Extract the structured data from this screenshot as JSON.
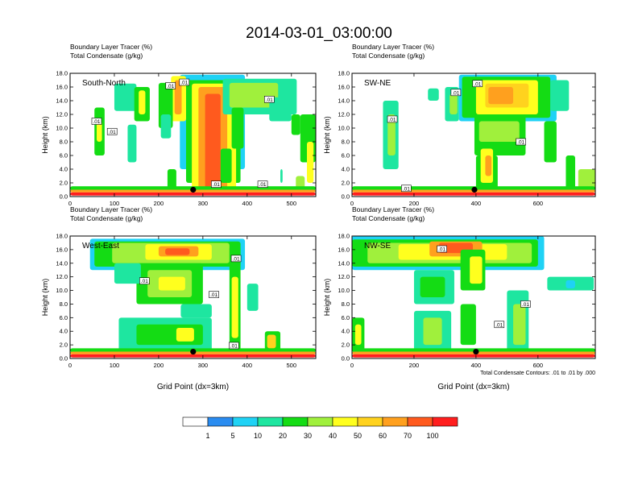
{
  "title": "2014-03-01_03:00:00",
  "chart_data": [
    {
      "type": "heatmap",
      "panel_label": "South-North",
      "subtitle_lines": [
        "Boundary Layer Tracer    (%)",
        "Total Condensate    (g/kg)"
      ],
      "xlabel": "",
      "ylabel": "Height (km)",
      "xlim": [
        0,
        555
      ],
      "ylim": [
        0,
        18
      ],
      "x_ticks": [
        0,
        100,
        200,
        300,
        400,
        500
      ],
      "y_ticks": [
        "0.0",
        "2.0",
        "4.0",
        "6.0",
        "8.0",
        "10.0",
        "12.0",
        "14.0",
        "16.0",
        "18.0"
      ],
      "marker": {
        "x": 278,
        "y": 1.0
      },
      "contour_labels": [
        {
          "text": ".01",
          "x": 227,
          "y": 16.2
        },
        {
          "text": ".01",
          "x": 258,
          "y": 16.7
        },
        {
          "text": ".01",
          "x": 450,
          "y": 14.2
        },
        {
          "text": ".01",
          "x": 60,
          "y": 11.0
        },
        {
          "text": ".01",
          "x": 95,
          "y": 9.5
        },
        {
          "text": ".01",
          "x": 330,
          "y": 1.8
        },
        {
          "text": ".01",
          "x": 435,
          "y": 1.8
        }
      ]
    },
    {
      "type": "heatmap",
      "panel_label": "SW-NE",
      "subtitle_lines": [
        "Boundary Layer Tracer    (%)",
        "Total Condensate    (g/kg)"
      ],
      "xlabel": "",
      "ylabel": "Height (km)",
      "xlim": [
        0,
        785
      ],
      "ylim": [
        0,
        18
      ],
      "x_ticks": [
        0,
        200,
        400,
        600
      ],
      "y_ticks": [
        "0.0",
        "2.0",
        "4.0",
        "6.0",
        "8.0",
        "10.0",
        "12.0",
        "14.0",
        "16.0",
        "18.0"
      ],
      "marker": {
        "x": 395,
        "y": 1.0
      },
      "contour_labels": [
        {
          "text": ".01",
          "x": 405,
          "y": 16.5
        },
        {
          "text": ".01",
          "x": 335,
          "y": 15.2
        },
        {
          "text": ".01",
          "x": 130,
          "y": 11.3
        },
        {
          "text": ".01",
          "x": 545,
          "y": 8.0
        },
        {
          "text": ".01",
          "x": 175,
          "y": 1.2
        }
      ]
    },
    {
      "type": "heatmap",
      "panel_label": "West-East",
      "subtitle_lines": [
        "Boundary Layer Tracer    (%)",
        "Total Condensate    (g/kg)"
      ],
      "xlabel": "Grid Point (dx=3km)",
      "ylabel": "Height (km)",
      "xlim": [
        0,
        555
      ],
      "ylim": [
        0,
        18
      ],
      "x_ticks": [
        0,
        100,
        200,
        300,
        400,
        500
      ],
      "y_ticks": [
        "0.0",
        "2.0",
        "4.0",
        "6.0",
        "8.0",
        "10.0",
        "12.0",
        "14.0",
        "16.0",
        "18.0"
      ],
      "marker": {
        "x": 278,
        "y": 1.0
      },
      "contour_labels": [
        {
          "text": ".01",
          "x": 375,
          "y": 14.7
        },
        {
          "text": ".01",
          "x": 168,
          "y": 11.4
        },
        {
          "text": ".01",
          "x": 325,
          "y": 9.4
        },
        {
          "text": ".01",
          "x": 370,
          "y": 1.9
        }
      ]
    },
    {
      "type": "heatmap",
      "panel_label": "NW-SE",
      "subtitle_lines": [
        "Boundary Layer Tracer    (%)",
        "Total Condensate    (g/kg)"
      ],
      "xlabel": "Grid Point (dx=3km)",
      "ylabel": "Height (km)",
      "xlim": [
        0,
        785
      ],
      "ylim": [
        0,
        18
      ],
      "x_ticks": [
        0,
        200,
        400,
        600
      ],
      "y_ticks": [
        "0.0",
        "2.0",
        "4.0",
        "6.0",
        "8.0",
        "10.0",
        "12.0",
        "14.0",
        "16.0",
        "18.0"
      ],
      "marker": {
        "x": 400,
        "y": 1.0
      },
      "contour_labels": [
        {
          "text": ".01",
          "x": 290,
          "y": 16.1
        },
        {
          "text": ".01",
          "x": 560,
          "y": 8.0
        },
        {
          "text": ".01",
          "x": 475,
          "y": 5.0
        }
      ],
      "footnote": "Total Condensate Contours: .01 to .01 by .000"
    }
  ],
  "colorbar": {
    "levels": [
      "1",
      "5",
      "10",
      "20",
      "30",
      "40",
      "50",
      "60",
      "70",
      "100"
    ],
    "colors": [
      "#ffffff",
      "#2a8cf0",
      "#1fd2f5",
      "#1ee6a0",
      "#14dc14",
      "#a0f03c",
      "#ffff1e",
      "#ffd21e",
      "#ffa01e",
      "#ff5a1e",
      "#ff1e1e"
    ]
  }
}
